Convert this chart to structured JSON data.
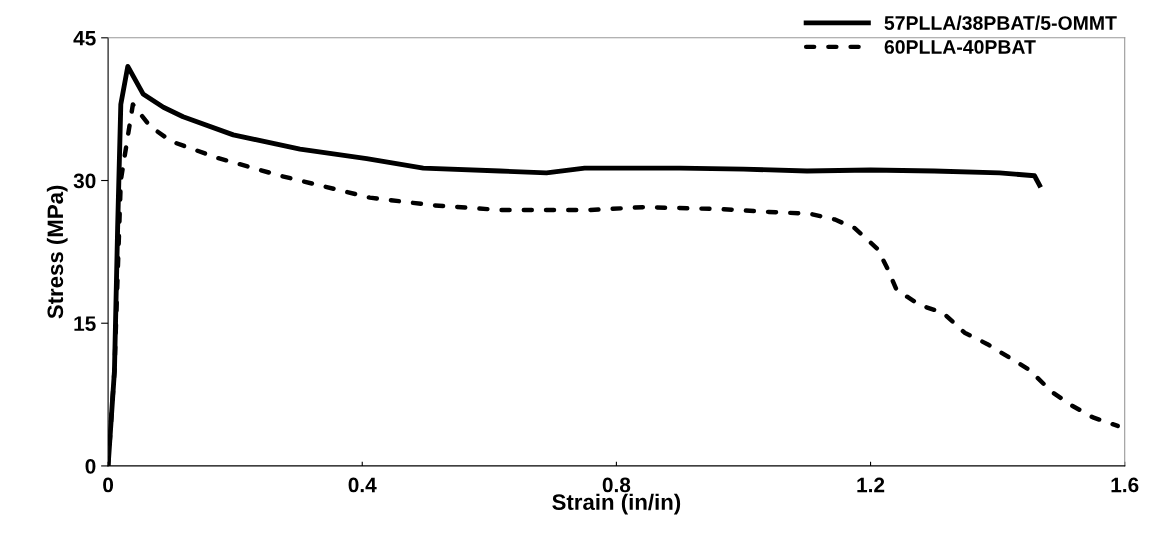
{
  "chart_data": {
    "type": "line",
    "xlabel": "Strain (in/in)",
    "ylabel": "Stress (MPa)",
    "xlim": [
      0,
      1.6
    ],
    "xticks": [
      0,
      0.4,
      0.8,
      1.2,
      1.6
    ],
    "ylim": [
      0,
      45
    ],
    "yticks": [
      0,
      15,
      30,
      45
    ],
    "grid": false,
    "legend": "top right",
    "series": [
      {
        "name": "57PLLA/38PBAT/5-OMMT",
        "color": "#000000",
        "line_style": "solid",
        "x": [
          0,
          0.01,
          0.015,
          0.02,
          0.031,
          0.055,
          0.087,
          0.118,
          0.197,
          0.302,
          0.407,
          0.496,
          0.617,
          0.69,
          0.75,
          0.9,
          1.0,
          1.1,
          1.2,
          1.3,
          1.403,
          1.458,
          1.466
        ],
        "values": [
          0,
          10,
          25,
          38,
          42.0,
          39.1,
          37.7,
          36.7,
          34.8,
          33.3,
          32.3,
          31.3,
          31.0,
          30.8,
          31.3,
          31.3,
          31.2,
          31.0,
          31.1,
          31.0,
          30.8,
          30.5,
          29.5
        ]
      },
      {
        "name": "60PLLA-40PBAT",
        "color": "#000000",
        "line_style": "dashed",
        "x": [
          0,
          0.01,
          0.02,
          0.039,
          0.066,
          0.1,
          0.171,
          0.271,
          0.412,
          0.511,
          0.617,
          0.758,
          0.842,
          0.963,
          1.04,
          1.105,
          1.144,
          1.175,
          1.211,
          1.227,
          1.241,
          1.278,
          1.314,
          1.348,
          1.384,
          1.45,
          1.485,
          1.518,
          1.55,
          1.589
        ],
        "values": [
          0,
          10,
          30,
          38.0,
          35.7,
          34.1,
          32.4,
          30.5,
          28.2,
          27.4,
          26.9,
          26.9,
          27.2,
          27.0,
          26.7,
          26.5,
          25.9,
          25.0,
          22.8,
          20.7,
          18.5,
          16.9,
          16.1,
          14.0,
          12.8,
          10.1,
          7.8,
          6.3,
          5.1,
          4.2
        ]
      }
    ]
  }
}
